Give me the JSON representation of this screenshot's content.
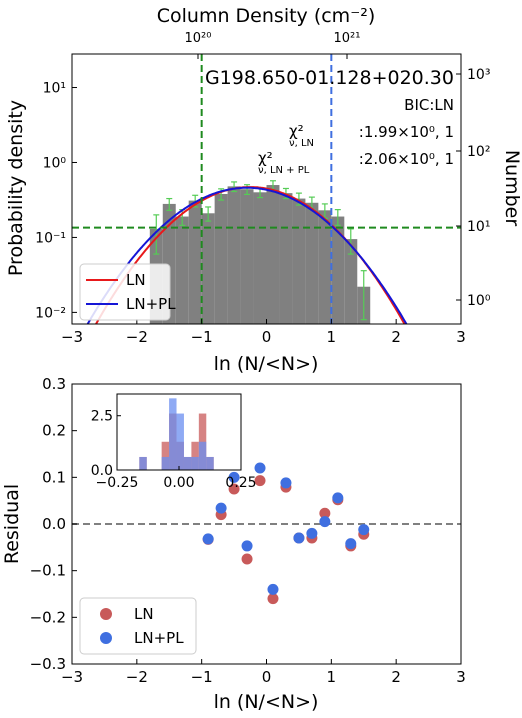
{
  "chart_data": [
    {
      "type": "bar",
      "title_top_axis": "Column Density (cm⁻²)",
      "top_tick_labels": [
        "10²⁰",
        "10²¹"
      ],
      "object_label": "G198.650-01.128+020.30",
      "bic_label": "BIC:LN",
      "chi_ln_label": "χ²",
      "chi_ln_sub": "ν, LN",
      "chi_ln_value": ":1.99×10⁰, 1",
      "chi_lnpl_label": "χ²",
      "chi_lnpl_sub": "ν, LN + PL",
      "chi_lnpl_value": ":2.06×10⁰, 1",
      "xlabel": "ln (N/<N>)",
      "ylabel": "Probability density",
      "ylabel_right": "Number",
      "xlim": [
        -3,
        3
      ],
      "ylim": [
        0.007,
        28
      ],
      "yscale": "log",
      "x_ticks": [
        "−3",
        "−2",
        "−1",
        "0",
        "1",
        "2",
        "3"
      ],
      "y_ticks_left": [
        "10⁻²",
        "10⁻¹",
        "10⁰",
        "10¹"
      ],
      "y_ticks_right": [
        "10⁰",
        "10¹",
        "10²",
        "10³"
      ],
      "histogram": {
        "bin_edges": [
          -1.8,
          -1.6,
          -1.4,
          -1.2,
          -1.0,
          -0.8,
          -0.6,
          -0.4,
          -0.2,
          0.0,
          0.2,
          0.4,
          0.6,
          0.8,
          1.0,
          1.2,
          1.4,
          1.6
        ],
        "values": [
          0.13,
          0.28,
          0.19,
          0.31,
          0.21,
          0.38,
          0.48,
          0.44,
          0.4,
          0.5,
          0.39,
          0.33,
          0.29,
          0.23,
          0.19,
          0.095,
          0.022
        ],
        "errors": [
          0.07,
          0.05,
          0.045,
          0.055,
          0.045,
          0.065,
          0.07,
          0.065,
          0.06,
          0.07,
          0.06,
          0.06,
          0.055,
          0.05,
          0.045,
          0.035,
          0.014
        ]
      },
      "series": [
        {
          "name": "LN",
          "color": "#e8191b",
          "peak": 0.47,
          "mu": -0.25,
          "sigma": 0.82
        },
        {
          "name": "LN+PL",
          "color": "#1515d6",
          "peak": 0.46,
          "mu": -0.3,
          "sigma": 0.85
        }
      ],
      "vlines": [
        {
          "x": -1.0,
          "color": "#1f8a1f"
        },
        {
          "x": 1.0,
          "color": "#3f6fe0"
        }
      ],
      "hline": {
        "y": 0.135,
        "color": "#1f8a1f"
      },
      "legend_placement": "lower-left"
    },
    {
      "type": "scatter",
      "xlabel": "ln (N/<N>)",
      "ylabel": "Residual",
      "xlim": [
        -3,
        3
      ],
      "ylim": [
        -0.3,
        0.3
      ],
      "x_ticks": [
        "−3",
        "−2",
        "−1",
        "0",
        "1",
        "2",
        "3"
      ],
      "y_ticks": [
        "−0.3",
        "−0.2",
        "−0.1",
        "0.0",
        "0.1",
        "0.2",
        "0.3"
      ],
      "zero_line": 0,
      "series": [
        {
          "name": "LN",
          "color": "#c85a5a",
          "x": [
            -0.9,
            -0.7,
            -0.5,
            -0.3,
            -0.1,
            0.1,
            0.3,
            0.5,
            0.7,
            0.9,
            1.1,
            1.3,
            1.5
          ],
          "y": [
            -0.033,
            0.02,
            0.075,
            -0.075,
            0.093,
            -0.16,
            0.079,
            -0.03,
            -0.03,
            0.023,
            0.052,
            -0.047,
            -0.022
          ]
        },
        {
          "name": "LN+PL",
          "color": "#3f6fe0",
          "x": [
            -0.9,
            -0.7,
            -0.5,
            -0.3,
            -0.1,
            0.1,
            0.3,
            0.5,
            0.7,
            0.9,
            1.1,
            1.3,
            1.5
          ],
          "y": [
            -0.032,
            0.034,
            0.1,
            -0.047,
            0.12,
            -0.14,
            0.088,
            -0.03,
            -0.02,
            0.005,
            0.056,
            -0.042,
            -0.012
          ]
        }
      ],
      "legend_placement": "lower-left",
      "inset": {
        "type": "histogram",
        "xlim": [
          -0.25,
          0.25
        ],
        "ylim": [
          0,
          3.5
        ],
        "x_ticks": [
          "−0.25",
          "0.00",
          "0.25"
        ],
        "y_ticks": [
          "0.0",
          "2.5"
        ],
        "series": [
          {
            "name": "LN",
            "color": "#c85a5a",
            "bins": [
              -0.16,
              -0.13,
              -0.1,
              -0.07,
              -0.04,
              -0.01,
              0.02,
              0.05,
              0.08,
              0.11
            ],
            "values": [
              0.6,
              0,
              0,
              1.3,
              2.6,
              1.3,
              0.6,
              1.3,
              2.6,
              0.6
            ]
          },
          {
            "name": "LN+PL",
            "color": "#6a8ef0",
            "bins": [
              -0.16,
              -0.13,
              -0.1,
              -0.07,
              -0.04,
              -0.01,
              0.02,
              0.05,
              0.08,
              0.11
            ],
            "values": [
              0.6,
              0,
              0,
              0.6,
              3.3,
              2.6,
              0.6,
              0.6,
              1.3,
              0.6
            ]
          }
        ]
      }
    }
  ]
}
